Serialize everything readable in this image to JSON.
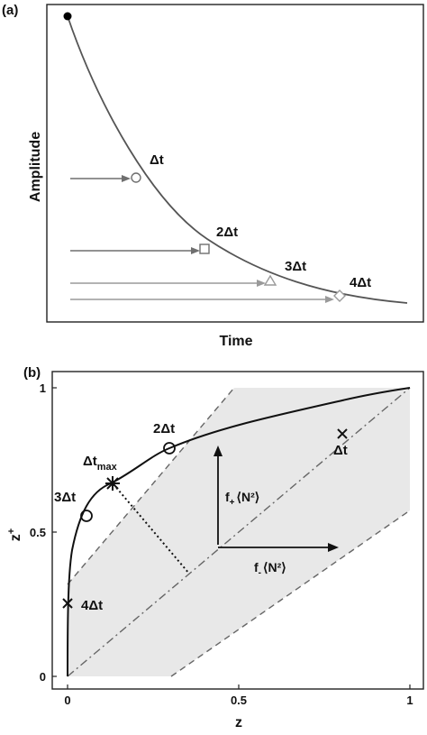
{
  "panel_a": {
    "label": "(a)",
    "xlabel": "Time",
    "ylabel": "Amplitude",
    "markers": [
      {
        "label": "Δt",
        "shape": "circle",
        "color": "#6f6f6f"
      },
      {
        "label": "2Δt",
        "shape": "square",
        "color": "#6f6f6f"
      },
      {
        "label": "3Δt",
        "shape": "triangle",
        "color": "#9a9a9a"
      },
      {
        "label": "4Δt",
        "shape": "diamond",
        "color": "#9a9a9a"
      }
    ],
    "colors": {
      "curve": "#555555",
      "start_dot": "#000000"
    }
  },
  "panel_b": {
    "label": "(b)",
    "xlabel": "z",
    "ylabel": "z",
    "ylabel_sub": "+",
    "xticks": [
      "0",
      "0.5",
      "1"
    ],
    "yticks": [
      "0",
      "0.5",
      "1"
    ],
    "xlim": [
      0,
      1
    ],
    "ylim": [
      0,
      1
    ],
    "markers": [
      {
        "label": "Δt",
        "shape": "cross"
      },
      {
        "label": "2Δt",
        "shape": "circle"
      },
      {
        "label": "Δt",
        "sub": "max",
        "shape": "star"
      },
      {
        "label": "3Δt",
        "shape": "circle"
      },
      {
        "label": "4Δt",
        "shape": "cross"
      }
    ],
    "f_plus": {
      "main": "f",
      "sub": "+",
      "rest": "⟨N²⟩"
    },
    "f_minus": {
      "main": "f",
      "sub": "-",
      "rest": "⟨N²⟩"
    },
    "colors": {
      "band": "#e8e8e8",
      "curve": "#111111",
      "dashed": "#666666"
    }
  }
}
